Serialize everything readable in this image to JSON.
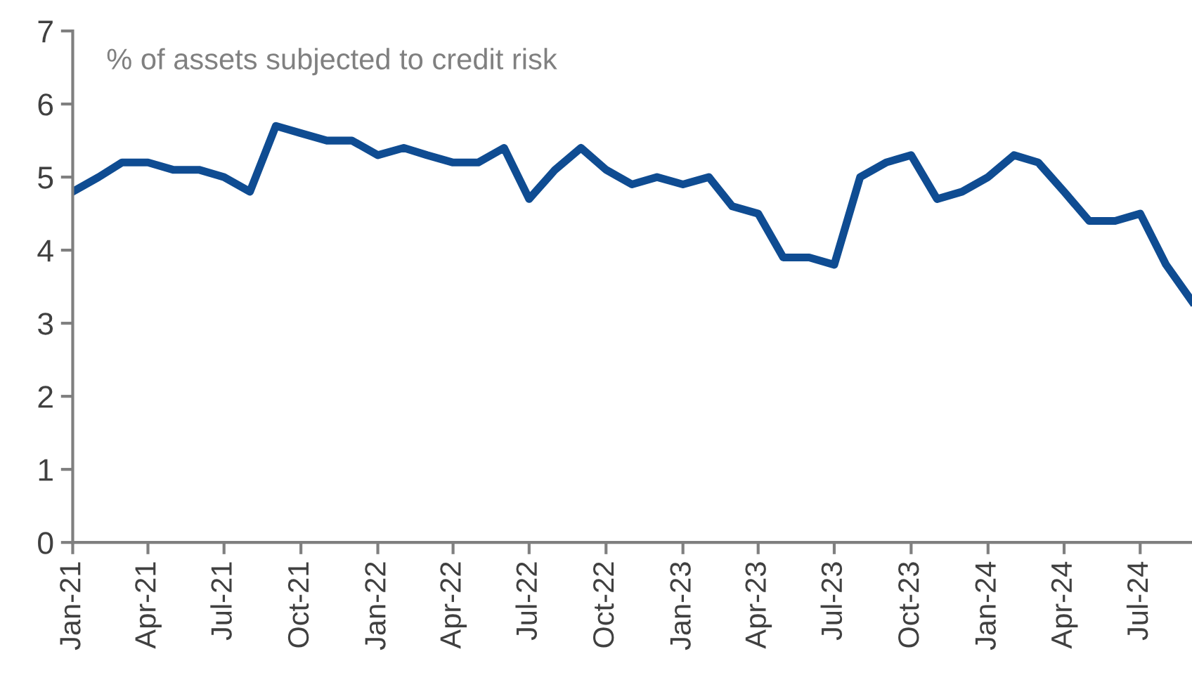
{
  "chart_data": {
    "type": "line",
    "annotations": [
      "% of assets subjected to credit risk"
    ],
    "x": [
      "2021-01",
      "2021-02",
      "2021-03",
      "2021-04",
      "2021-05",
      "2021-06",
      "2021-07",
      "2021-08",
      "2021-09",
      "2021-10",
      "2021-11",
      "2021-12",
      "2022-01",
      "2022-02",
      "2022-03",
      "2022-04",
      "2022-05",
      "2022-06",
      "2022-07",
      "2022-08",
      "2022-09",
      "2022-10",
      "2022-11",
      "2022-12",
      "2023-01",
      "2023-02",
      "2023-03",
      "2023-04",
      "2023-05",
      "2023-06",
      "2023-07",
      "2023-08",
      "2023-09",
      "2023-10",
      "2023-11",
      "2023-12",
      "2024-01",
      "2024-02",
      "2024-03",
      "2024-04",
      "2024-05",
      "2024-06",
      "2024-07",
      "2024-08",
      "2024-09"
    ],
    "series": [
      {
        "color": "#0f4c92",
        "values": [
          4.8,
          5.0,
          5.2,
          5.2,
          5.1,
          5.1,
          5.0,
          4.8,
          5.7,
          5.6,
          5.5,
          5.5,
          5.3,
          5.4,
          5.3,
          5.2,
          5.2,
          5.4,
          4.7,
          5.1,
          5.4,
          5.1,
          4.9,
          5.0,
          4.9,
          5.0,
          4.6,
          4.5,
          3.9,
          3.9,
          3.8,
          5.0,
          5.2,
          5.3,
          4.7,
          4.8,
          5.0,
          5.3,
          5.2,
          4.8,
          4.4,
          4.4,
          4.5,
          3.8,
          3.3
        ]
      }
    ],
    "xlim": [
      "2021-01",
      "2024-09"
    ],
    "xticks": [
      {
        "value": "2021-01",
        "label": "Jan-21"
      },
      {
        "value": "2021-04",
        "label": "Apr-21"
      },
      {
        "value": "2021-07",
        "label": "Jul-21"
      },
      {
        "value": "2021-10",
        "label": "Oct-21"
      },
      {
        "value": "2022-01",
        "label": "Jan-22"
      },
      {
        "value": "2022-04",
        "label": "Apr-22"
      },
      {
        "value": "2022-07",
        "label": "Jul-22"
      },
      {
        "value": "2022-10",
        "label": "Oct-22"
      },
      {
        "value": "2023-01",
        "label": "Jan-23"
      },
      {
        "value": "2023-04",
        "label": "Apr-23"
      },
      {
        "value": "2023-07",
        "label": "Jul-23"
      },
      {
        "value": "2023-10",
        "label": "Oct-23"
      },
      {
        "value": "2024-01",
        "label": "Jan-24"
      },
      {
        "value": "2024-04",
        "label": "Apr-24"
      },
      {
        "value": "2024-07",
        "label": "Jul-24"
      }
    ],
    "ylim": [
      0,
      7
    ],
    "yticks": [
      0,
      1,
      2,
      3,
      4,
      5,
      6,
      7
    ],
    "grid": false,
    "legend": false,
    "marker": "none",
    "line_style": "solid"
  }
}
